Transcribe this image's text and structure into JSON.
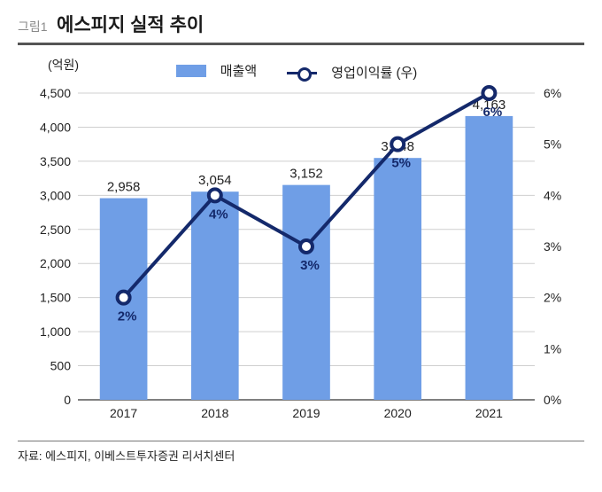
{
  "fig_label": "그림1",
  "title": "에스피지 실적 추이",
  "y_unit": "(억원)",
  "legend": {
    "bar": "매출액",
    "line": "영업이익률 (우)"
  },
  "source": "자료: 에스피지, 이베스트투자증권 리서치센터",
  "chart": {
    "type": "bar+line",
    "categories": [
      "2017",
      "2018",
      "2019",
      "2020",
      "2021"
    ],
    "bar_values": [
      2958,
      3054,
      3152,
      3548,
      4163
    ],
    "bar_labels": [
      "2,958",
      "3,054",
      "3,152",
      "3,548",
      "4,163"
    ],
    "line_values_pct": [
      2,
      4,
      3,
      5,
      6
    ],
    "line_labels": [
      "2%",
      "4%",
      "3%",
      "5%",
      "6%"
    ],
    "bar_color": "#6f9ee6",
    "line_color": "#14296b",
    "marker_fill": "#ffffff",
    "grid_color": "#cfcfcf",
    "axis_color": "#555555",
    "text_color": "#222222",
    "background": "#ffffff",
    "label_fontsize": 15,
    "tick_fontsize": 14,
    "y_left": {
      "min": 0,
      "max": 4500,
      "step": 500,
      "ticks": [
        "0",
        "500",
        "1,000",
        "1,500",
        "2,000",
        "2,500",
        "3,000",
        "3,500",
        "4,000",
        "4,500"
      ]
    },
    "y_right": {
      "min": 0,
      "max": 6,
      "step": 1,
      "ticks": [
        "0%",
        "1%",
        "2%",
        "3%",
        "4%",
        "5%",
        "6%"
      ]
    },
    "bar_width_ratio": 0.52,
    "line_width": 4,
    "marker_radius": 7,
    "marker_stroke": 4
  }
}
